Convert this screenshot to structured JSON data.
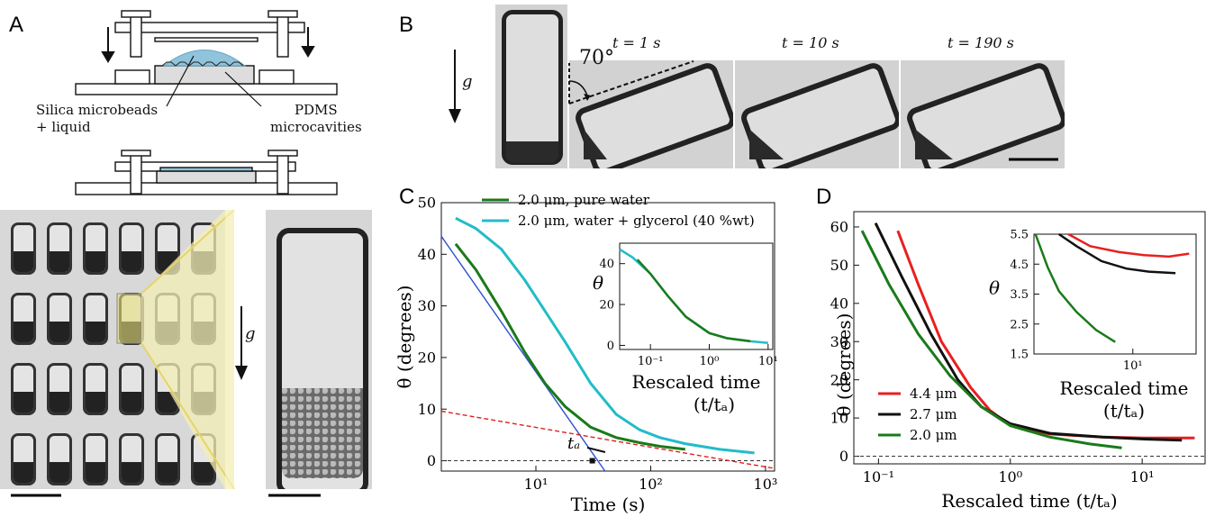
{
  "panels": {
    "A": {
      "label": "A",
      "schematic_labels": {
        "beads": [
          "Silica microbeads",
          "+ liquid"
        ],
        "pdms": [
          "PDMS",
          "microcavities"
        ]
      },
      "gravity_label": "g"
    },
    "B": {
      "label": "B",
      "gravity_label": "g",
      "angle_label": "70°",
      "frames": [
        {
          "t": "t = 1 s"
        },
        {
          "t": "t = 10 s"
        },
        {
          "t": "t = 190 s"
        }
      ]
    }
  },
  "chart_data": [
    {
      "id": "C",
      "label": "C",
      "type": "line",
      "xscale": "log",
      "xlabel": "Time (s)",
      "ylabel": "θ (degrees)",
      "xlim": [
        1.5,
        1200
      ],
      "ylim": [
        -2,
        50
      ],
      "xticks": [
        10,
        100,
        1000
      ],
      "xticklabels": [
        "10¹",
        "10²",
        "10³"
      ],
      "yticks": [
        0,
        10,
        20,
        30,
        40,
        50
      ],
      "yticklabels": [
        "0",
        "10",
        "20",
        "30",
        "40",
        "50"
      ],
      "annotation": "tₐ",
      "series": [
        {
          "name": "2.0 μm, pure water",
          "color": "#1a7a1a",
          "x": [
            2,
            3,
            5,
            8,
            12,
            18,
            30,
            50,
            80,
            120,
            200
          ],
          "y": [
            42,
            37,
            29,
            21,
            15,
            10.5,
            6.5,
            4.5,
            3.5,
            2.8,
            2.2
          ]
        },
        {
          "name": "2.0 μm, water + glycerol (40 %wt)",
          "color": "#22bcc8",
          "x": [
            2,
            3,
            5,
            8,
            12,
            18,
            30,
            50,
            80,
            120,
            200,
            400,
            800
          ],
          "y": [
            47,
            45,
            41,
            35,
            29,
            23,
            15,
            9,
            6,
            4.5,
            3.3,
            2.2,
            1.5
          ]
        }
      ],
      "fits": [
        {
          "x": [
            1.5,
            40
          ],
          "y": [
            43.5,
            -2
          ],
          "color": "#3050d0"
        },
        {
          "x": [
            1.5,
            1200
          ],
          "y": [
            9.6,
            -1.5
          ],
          "color": "#e02020"
        }
      ],
      "inset": {
        "xscale": "log",
        "xlabel": "Rescaled time",
        "xlabel2": "(t/tₐ)",
        "ylabel": "θ",
        "xlim": [
          0.03,
          12
        ],
        "ylim": [
          -2,
          50
        ],
        "xticks": [
          0.1,
          1,
          10
        ],
        "xticklabels": [
          "10⁻¹",
          "10⁰",
          "10¹"
        ],
        "yticks": [
          0,
          20,
          40
        ],
        "yticklabels": [
          "0",
          "20",
          "40"
        ],
        "series": [
          {
            "color": "#22bcc8",
            "x": [
              0.03,
              0.05,
              0.1,
              0.2,
              0.4,
              1,
              2,
              5,
              10
            ],
            "y": [
              47,
              43,
              35,
              24,
              14,
              6,
              3.5,
              2,
              1.2
            ]
          },
          {
            "color": "#1a7a1a",
            "x": [
              0.06,
              0.1,
              0.2,
              0.4,
              1,
              2,
              5
            ],
            "y": [
              42,
              35,
              24,
              14,
              6,
              3.5,
              2
            ]
          }
        ]
      }
    },
    {
      "id": "D",
      "label": "D",
      "type": "line",
      "xscale": "log",
      "xlabel": "Rescaled time (t/tₐ)",
      "ylabel": "θ (degrees)",
      "xlim": [
        0.065,
        30
      ],
      "ylim": [
        -2,
        64
      ],
      "xticks": [
        0.1,
        1,
        10
      ],
      "xticklabels": [
        "10⁻¹",
        "10⁰",
        "10¹"
      ],
      "yticks": [
        0,
        10,
        20,
        30,
        40,
        50,
        60
      ],
      "yticklabels": [
        "0",
        "10",
        "20",
        "30",
        "40",
        "50",
        "60"
      ],
      "series": [
        {
          "name": "4.4 μm",
          "color": "#e82020",
          "x": [
            0.14,
            0.2,
            0.3,
            0.5,
            0.7,
            1,
            2,
            5,
            10,
            25
          ],
          "y": [
            59,
            45,
            30,
            18,
            12,
            8,
            5.8,
            5,
            4.8,
            4.8
          ]
        },
        {
          "name": "2.7 μm",
          "color": "#111111",
          "x": [
            0.095,
            0.15,
            0.25,
            0.4,
            0.6,
            1,
            2,
            5,
            10,
            20
          ],
          "y": [
            61,
            47,
            32,
            20,
            13,
            8.5,
            6,
            5,
            4.5,
            4.2
          ]
        },
        {
          "name": "2.0 μm",
          "color": "#1a7a1a",
          "x": [
            0.075,
            0.12,
            0.2,
            0.35,
            0.6,
            1,
            2,
            4,
            7
          ],
          "y": [
            59,
            45,
            32,
            21,
            13,
            8,
            5,
            3.2,
            2.2
          ]
        }
      ],
      "inset": {
        "xscale": "log",
        "xlabel": "Rescaled time",
        "xlabel2": "(t/tₐ)",
        "ylabel": "θ",
        "xlim": [
          2,
          28
        ],
        "ylim": [
          1.5,
          5.5
        ],
        "xticks": [
          10
        ],
        "xticklabels": [
          "10¹"
        ],
        "yticks": [
          1.5,
          2.5,
          3.5,
          4.5,
          5.5
        ],
        "yticklabels": [
          "1.5",
          "2.5",
          "3.5",
          "4.5",
          "5.5"
        ],
        "series": [
          {
            "color": "#e82020",
            "x": [
              3.5,
              5,
              8,
              12,
              18,
              25
            ],
            "y": [
              5.5,
              5.1,
              4.9,
              4.8,
              4.75,
              4.85
            ]
          },
          {
            "color": "#111111",
            "x": [
              3,
              4,
              6,
              9,
              13,
              20
            ],
            "y": [
              5.5,
              5.1,
              4.6,
              4.35,
              4.25,
              4.2
            ]
          },
          {
            "color": "#1a7a1a",
            "x": [
              2.05,
              2.5,
              3,
              4,
              5.5,
              7.5
            ],
            "y": [
              5.5,
              4.4,
              3.6,
              2.9,
              2.3,
              1.9
            ]
          }
        ]
      }
    }
  ]
}
